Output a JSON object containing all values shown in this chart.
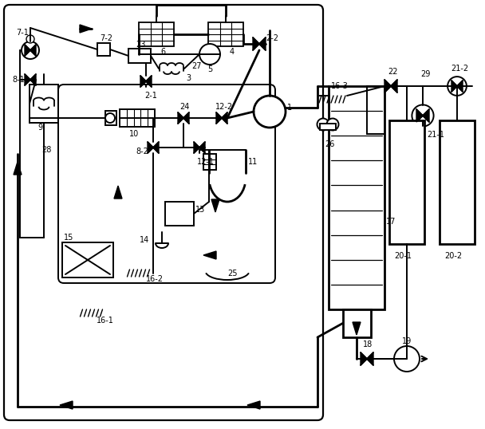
{
  "bg": "#ffffff",
  "lc": "#000000",
  "fw": 6.08,
  "fh": 5.38,
  "dpi": 100
}
